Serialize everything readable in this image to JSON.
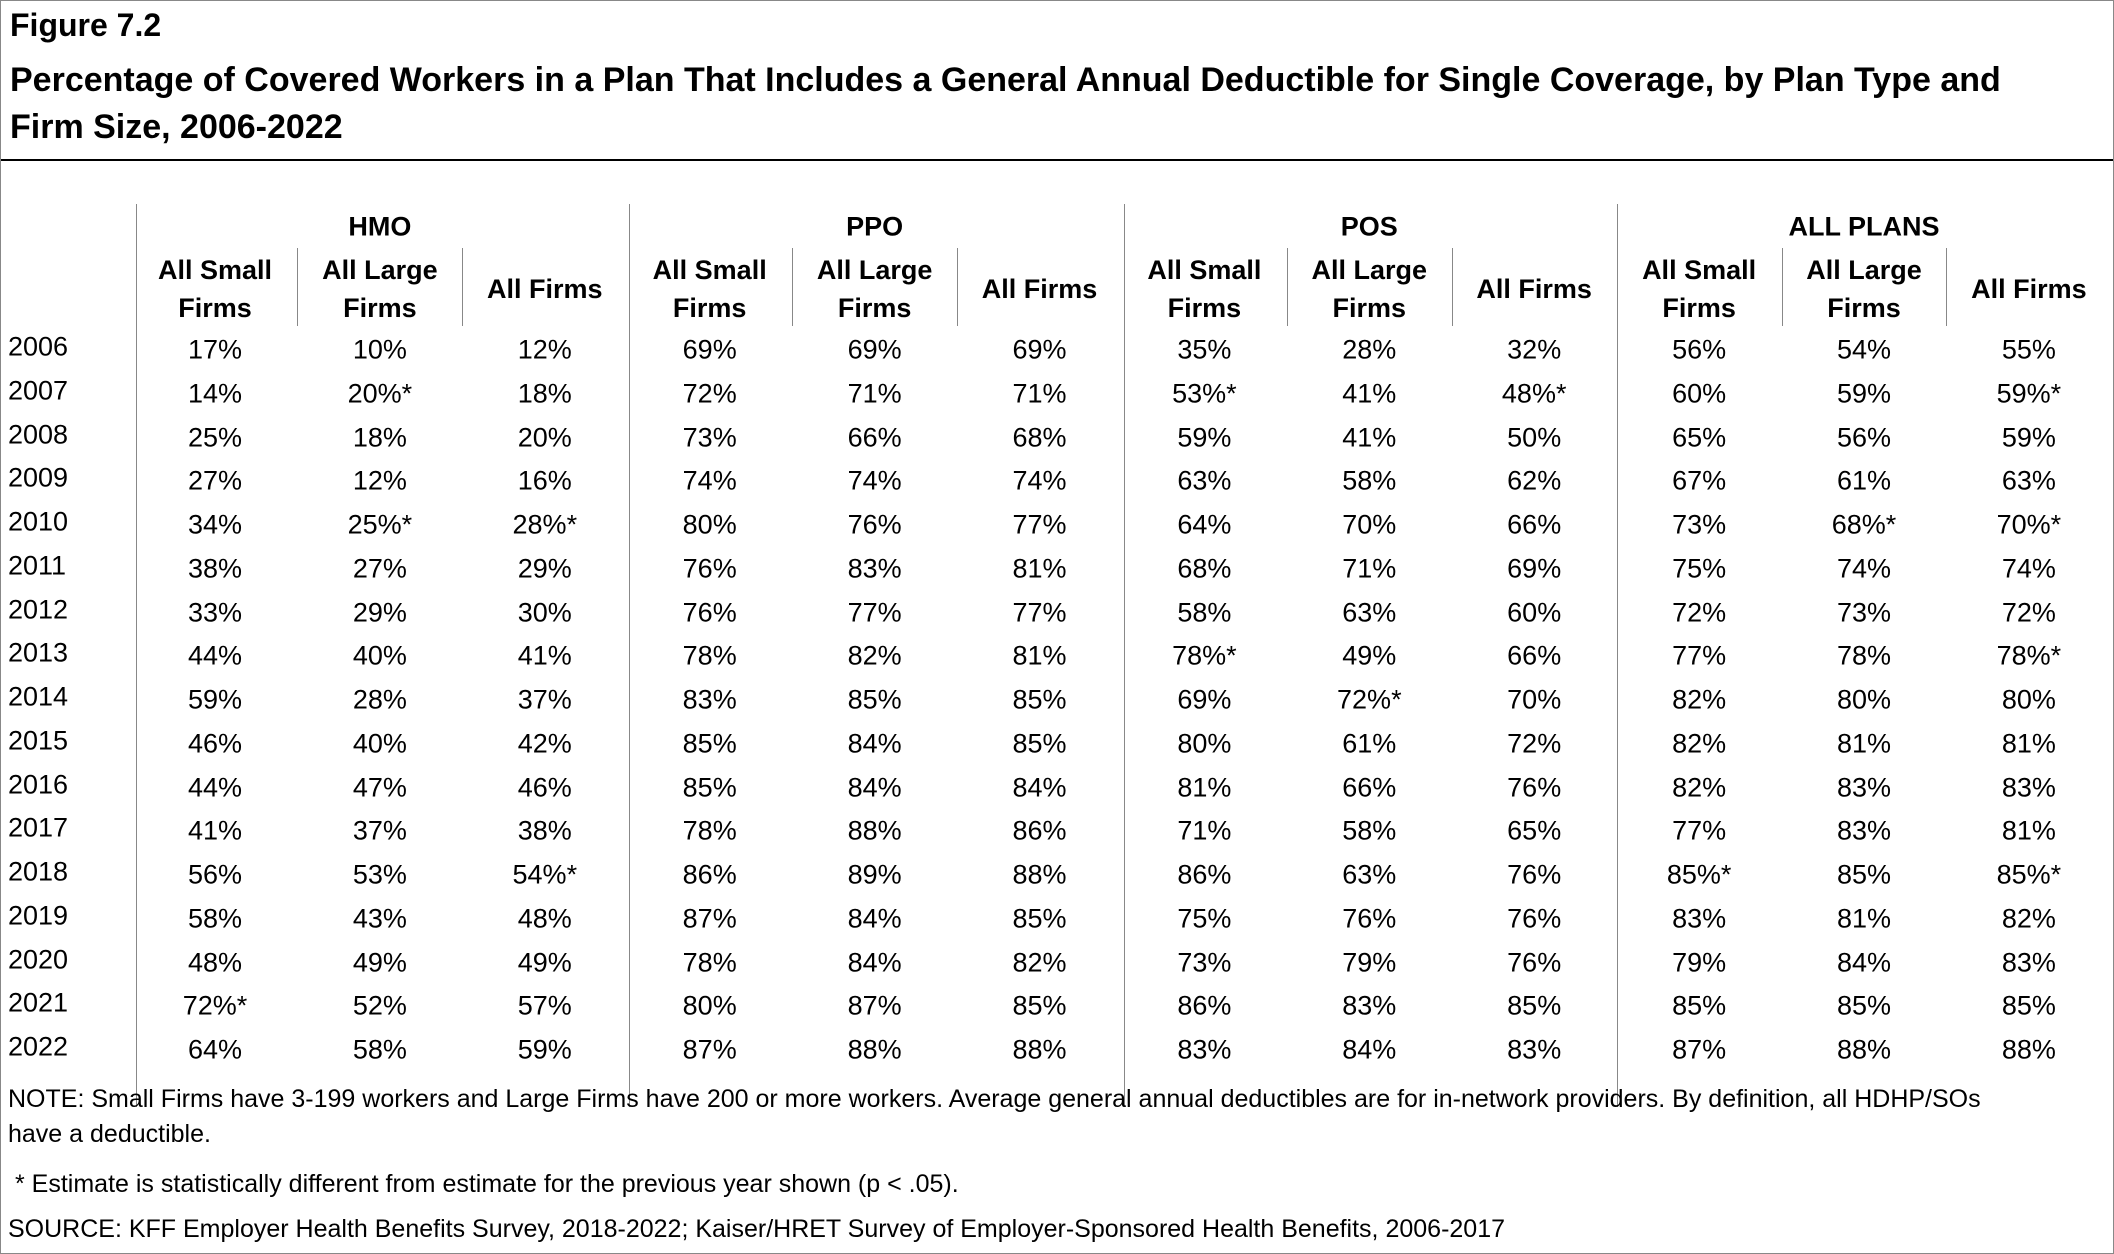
{
  "header": {
    "figure": "Figure 7.2",
    "title": "Percentage of Covered Workers in a Plan That Includes a General Annual Deductible for Single Coverage, by Plan Type and Firm Size, 2006-2022"
  },
  "table": {
    "groups": [
      "HMO",
      "PPO",
      "POS",
      "ALL PLANS"
    ],
    "subheaders": [
      "All Small Firms",
      "All Large Firms",
      "All Firms"
    ],
    "rows": [
      [
        "2006",
        "17%",
        "10%",
        "12%",
        "69%",
        "69%",
        "69%",
        "35%",
        "28%",
        "32%",
        "56%",
        "54%",
        "55%"
      ],
      [
        "2007",
        "14%",
        "20%*",
        "18%",
        "72%",
        "71%",
        "71%",
        "53%*",
        "41%",
        "48%*",
        "60%",
        "59%",
        "59%*"
      ],
      [
        "2008",
        "25%",
        "18%",
        "20%",
        "73%",
        "66%",
        "68%",
        "59%",
        "41%",
        "50%",
        "65%",
        "56%",
        "59%"
      ],
      [
        "2009",
        "27%",
        "12%",
        "16%",
        "74%",
        "74%",
        "74%",
        "63%",
        "58%",
        "62%",
        "67%",
        "61%",
        "63%"
      ],
      [
        "2010",
        "34%",
        "25%*",
        "28%*",
        "80%",
        "76%",
        "77%",
        "64%",
        "70%",
        "66%",
        "73%",
        "68%*",
        "70%*"
      ],
      [
        "2011",
        "38%",
        "27%",
        "29%",
        "76%",
        "83%",
        "81%",
        "68%",
        "71%",
        "69%",
        "75%",
        "74%",
        "74%"
      ],
      [
        "2012",
        "33%",
        "29%",
        "30%",
        "76%",
        "77%",
        "77%",
        "58%",
        "63%",
        "60%",
        "72%",
        "73%",
        "72%"
      ],
      [
        "2013",
        "44%",
        "40%",
        "41%",
        "78%",
        "82%",
        "81%",
        "78%*",
        "49%",
        "66%",
        "77%",
        "78%",
        "78%*"
      ],
      [
        "2014",
        "59%",
        "28%",
        "37%",
        "83%",
        "85%",
        "85%",
        "69%",
        "72%*",
        "70%",
        "82%",
        "80%",
        "80%"
      ],
      [
        "2015",
        "46%",
        "40%",
        "42%",
        "85%",
        "84%",
        "85%",
        "80%",
        "61%",
        "72%",
        "82%",
        "81%",
        "81%"
      ],
      [
        "2016",
        "44%",
        "47%",
        "46%",
        "85%",
        "84%",
        "84%",
        "81%",
        "66%",
        "76%",
        "82%",
        "83%",
        "83%"
      ],
      [
        "2017",
        "41%",
        "37%",
        "38%",
        "78%",
        "88%",
        "86%",
        "71%",
        "58%",
        "65%",
        "77%",
        "83%",
        "81%"
      ],
      [
        "2018",
        "56%",
        "53%",
        "54%*",
        "86%",
        "89%",
        "88%",
        "86%",
        "63%",
        "76%",
        "85%*",
        "85%",
        "85%*"
      ],
      [
        "2019",
        "58%",
        "43%",
        "48%",
        "87%",
        "84%",
        "85%",
        "75%",
        "76%",
        "76%",
        "83%",
        "81%",
        "82%"
      ],
      [
        "2020",
        "48%",
        "49%",
        "49%",
        "78%",
        "84%",
        "82%",
        "73%",
        "79%",
        "76%",
        "79%",
        "84%",
        "83%"
      ],
      [
        "2021",
        "72%*",
        "52%",
        "57%",
        "80%",
        "87%",
        "85%",
        "86%",
        "83%",
        "85%",
        "85%",
        "85%",
        "85%"
      ],
      [
        "2022",
        "64%",
        "58%",
        "59%",
        "87%",
        "88%",
        "88%",
        "83%",
        "84%",
        "83%",
        "87%",
        "88%",
        "88%"
      ]
    ]
  },
  "notes": [
    "NOTE: Small Firms have 3-199 workers and Large Firms have 200 or more workers. Average general annual deductibles are for in-network providers. By definition, all HDHP/SOs have a deductible.",
    "* Estimate is statistically different from estimate for the previous year shown (p < .05).",
    "SOURCE: KFF Employer Health Benefits Survey, 2018-2022; Kaiser/HRET Survey of Employer-Sponsored Health Benefits, 2006-2017"
  ]
}
